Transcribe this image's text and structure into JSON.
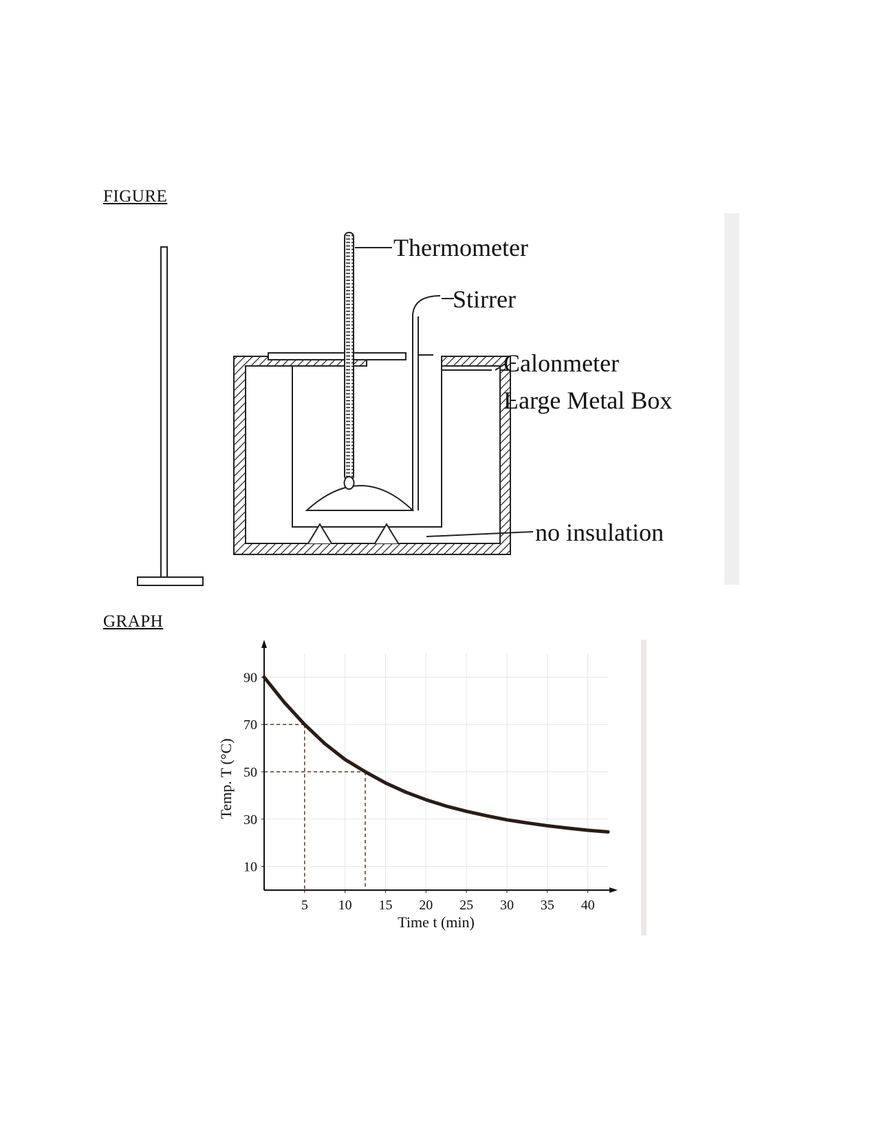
{
  "headings": {
    "figure": "FIGURE",
    "graph": "GRAPH"
  },
  "figure": {
    "labels": {
      "thermometer": "Thermometer",
      "stirrer": "Stirrer",
      "calorimeter": "Calonmeter",
      "metal_box": "Large Metal Box",
      "no_insulation": "no insulation"
    }
  },
  "chart_data": {
    "type": "line",
    "title": "",
    "xlabel": "Time t (min)",
    "ylabel": "Temp. T (°C)",
    "xlim": [
      0,
      42.5
    ],
    "ylim": [
      0,
      100
    ],
    "xticks": [
      5,
      10,
      15,
      20,
      25,
      30,
      35,
      40
    ],
    "yticks": [
      10,
      30,
      50,
      70,
      90
    ],
    "grid": true,
    "curve": {
      "x": [
        0,
        2.5,
        5,
        7.5,
        10,
        12.5,
        15,
        17.5,
        20,
        22.5,
        25,
        27.5,
        30,
        32.5,
        35,
        37.5,
        40,
        42.5
      ],
      "y": [
        90,
        79.3,
        70.0,
        61.9,
        55.2,
        50.0,
        45.3,
        41.4,
        38.2,
        35.5,
        33.3,
        31.4,
        29.7,
        28.4,
        27.2,
        26.2,
        25.3,
        24.6
      ]
    },
    "reference_lines": [
      {
        "x": 5,
        "y": 70
      },
      {
        "x": 12.5,
        "y": 50
      }
    ]
  }
}
